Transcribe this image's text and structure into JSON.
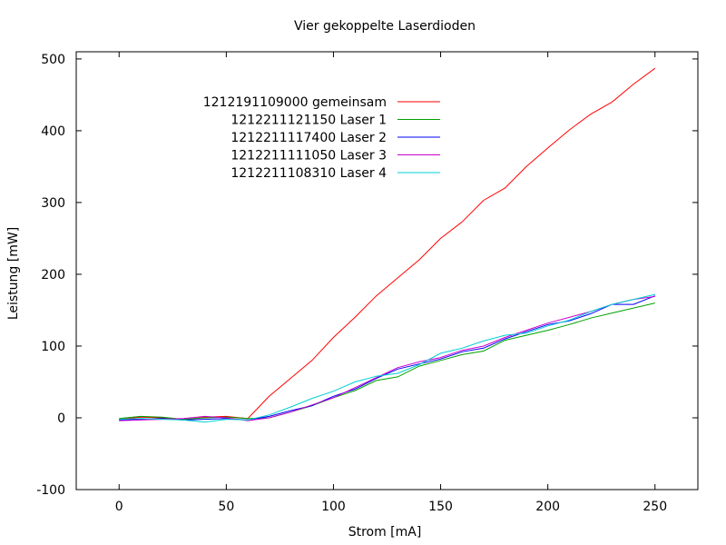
{
  "chart_data": {
    "type": "line",
    "title": "Vier gekoppelte Laserdioden",
    "xlabel": "Strom [mA]",
    "ylabel": "Leistung [mW]",
    "xlim": [
      -20,
      270
    ],
    "ylim": [
      -100,
      510
    ],
    "xticks": [
      0,
      50,
      100,
      150,
      200,
      250
    ],
    "yticks": [
      -100,
      0,
      100,
      200,
      300,
      400,
      500
    ],
    "grid": false,
    "legend_position": "top-left",
    "series": [
      {
        "name": "1212191109000 gemeinsam",
        "color": "#ff0000",
        "x": [
          0,
          10,
          20,
          30,
          40,
          50,
          60,
          70,
          80,
          90,
          100,
          110,
          120,
          130,
          140,
          150,
          160,
          170,
          180,
          190,
          200,
          210,
          220,
          230,
          240,
          250
        ],
        "y": [
          -2,
          1,
          0,
          -3,
          1,
          2,
          -1,
          30,
          55,
          80,
          112,
          140,
          170,
          195,
          220,
          250,
          273,
          303,
          320,
          350,
          376,
          401,
          423,
          440,
          465,
          487
        ]
      },
      {
        "name": "1212211121150 Laser 1",
        "color": "#00a000",
        "x": [
          0,
          10,
          20,
          30,
          40,
          50,
          60,
          70,
          80,
          90,
          100,
          110,
          120,
          130,
          140,
          150,
          160,
          170,
          180,
          190,
          200,
          210,
          220,
          230,
          240,
          250
        ],
        "y": [
          -1,
          2,
          1,
          -2,
          0,
          1,
          -1,
          0,
          8,
          17,
          28,
          38,
          52,
          57,
          72,
          80,
          88,
          93,
          108,
          115,
          122,
          130,
          139,
          146,
          153,
          160
        ]
      },
      {
        "name": "1212211117400 Laser 2",
        "color": "#0000ff",
        "x": [
          0,
          10,
          20,
          30,
          40,
          50,
          60,
          70,
          80,
          90,
          100,
          110,
          120,
          130,
          140,
          150,
          160,
          170,
          180,
          190,
          200,
          210,
          220,
          230,
          240,
          250
        ],
        "y": [
          -3,
          -2,
          -1,
          -3,
          -2,
          -1,
          -3,
          2,
          10,
          17,
          30,
          40,
          55,
          68,
          75,
          82,
          92,
          97,
          110,
          120,
          130,
          135,
          145,
          158,
          158,
          170
        ]
      },
      {
        "name": "1212211111050 Laser 3",
        "color": "#cc00cc",
        "x": [
          0,
          10,
          20,
          30,
          40,
          50,
          60,
          70,
          80,
          90,
          100,
          110,
          120,
          130,
          140,
          150,
          160,
          170,
          180,
          190,
          200,
          210,
          220,
          230,
          240,
          250
        ],
        "y": [
          -4,
          -3,
          -2,
          -1,
          2,
          0,
          -4,
          0,
          8,
          18,
          28,
          42,
          56,
          70,
          78,
          84,
          94,
          100,
          112,
          122,
          132,
          140,
          148,
          158,
          165,
          169
        ]
      },
      {
        "name": "1212211108310 Laser 4",
        "color": "#00d0d0",
        "x": [
          0,
          10,
          20,
          30,
          40,
          50,
          60,
          70,
          80,
          90,
          100,
          110,
          120,
          130,
          140,
          150,
          160,
          170,
          180,
          190,
          200,
          210,
          220,
          230,
          240,
          250
        ],
        "y": [
          -2,
          -1,
          -2,
          -3,
          -6,
          -2,
          -3,
          4,
          15,
          27,
          37,
          50,
          58,
          62,
          74,
          90,
          97,
          107,
          115,
          118,
          128,
          136,
          148,
          158,
          165,
          172
        ]
      }
    ]
  }
}
